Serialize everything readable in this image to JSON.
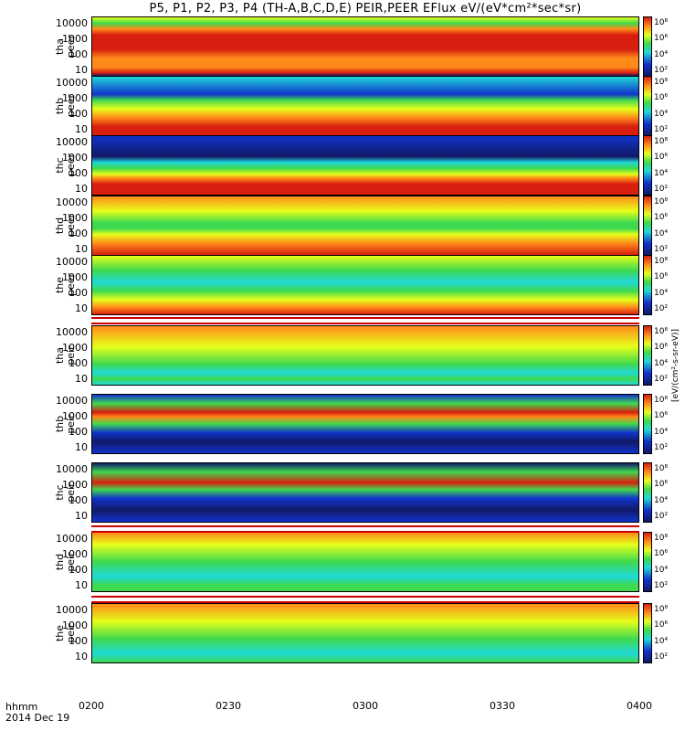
{
  "title": "P5, P1, P2, P3, P4 (TH-A,B,C,D,E) PEIR,PEER EFlux eV/(eV*cm²*sec*sr)",
  "x_ticks": [
    "0200",
    "0230",
    "0300",
    "0330",
    "0400"
  ],
  "corner_labels": {
    "line1": "hhmm",
    "line2": "2014 Dec 19"
  },
  "y_ticks": [
    "10000",
    "1000",
    "100",
    "10"
  ],
  "panels": [
    {
      "name": "tha peer",
      "probe": "tha",
      "species": "peer"
    },
    {
      "name": "thb peer",
      "probe": "thb",
      "species": "peer"
    },
    {
      "name": "thc peer",
      "probe": "thc",
      "species": "peer"
    },
    {
      "name": "thd peer",
      "probe": "thd",
      "species": "peer"
    },
    {
      "name": "the peer",
      "probe": "the",
      "species": "peer"
    },
    {
      "name": "tha peir",
      "probe": "tha",
      "species": "peir"
    },
    {
      "name": "thb peir",
      "probe": "thb",
      "species": "peir"
    },
    {
      "name": "thc peir",
      "probe": "thc",
      "species": "peir"
    },
    {
      "name": "thd peir",
      "probe": "thd",
      "species": "peir"
    },
    {
      "name": "the peir",
      "probe": "the",
      "species": "peir"
    }
  ],
  "colorbar_ticks": [
    "10⁸",
    "10⁶",
    "10⁴",
    "10²"
  ],
  "colorbar_label": "[eV/(cm²-s-sr-eV)]",
  "colors": {
    "red": "#d81f0f",
    "orange": "#ff8a1a",
    "yellow": "#e6ff1a",
    "green": "#3ed94e",
    "cyan": "#1fd9d9",
    "blue": "#1133cc",
    "navy": "#111a66"
  },
  "chart_data": {
    "type": "heatmap",
    "title": "P5, P1, P2, P3, P4 (TH-A,B,C,D,E) PEIR,PEER EFlux eV/(eV*cm²*sec*sr)",
    "x": [
      "0200",
      "0230",
      "0300",
      "0330",
      "0400"
    ],
    "xlim": [
      "0200",
      "0400"
    ],
    "yscale": "log",
    "ylim": [
      5,
      20000
    ],
    "y_ticks": [
      10,
      100,
      1000,
      10000
    ],
    "colorscale": "log",
    "panels": [
      "tha peer",
      "thb peer",
      "thc peer",
      "thd peer",
      "the peer",
      "tha peir",
      "thb peir",
      "thc peir",
      "thd peir",
      "the peir"
    ]
  }
}
